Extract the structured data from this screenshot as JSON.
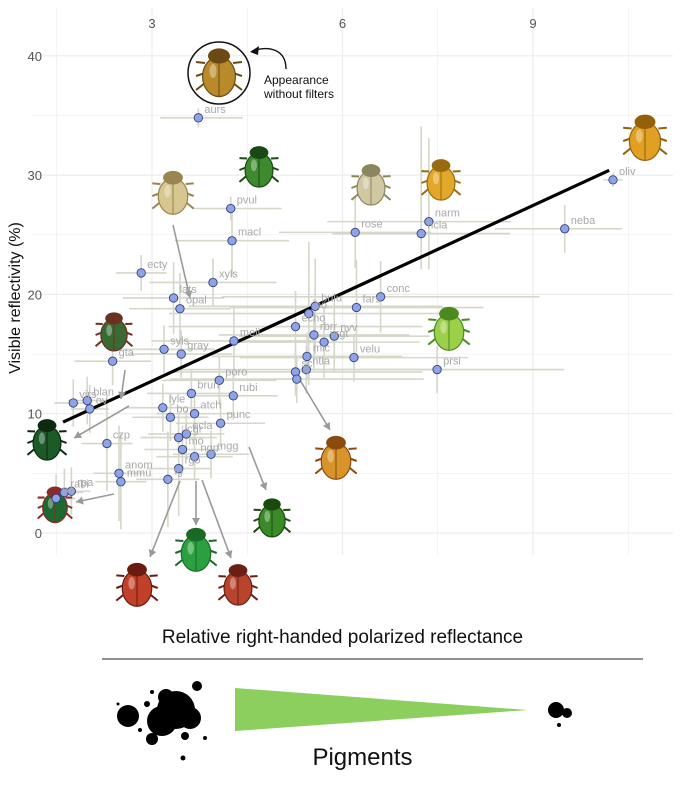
{
  "chart_data": {
    "type": "scatter",
    "xlabel": "Relative right-handed polarized reflectance",
    "ylabel": "Visible reflectivity (%)",
    "xlim": [
      0.2,
      11.1
    ],
    "ylim": [
      -1,
      42
    ],
    "x_ticks": [
      3,
      6,
      9
    ],
    "y_ticks": [
      0,
      10,
      20,
      30,
      40
    ],
    "x_axis_position": "top",
    "grid": true,
    "trend_line": {
      "x": [
        1.6,
        10.2
      ],
      "y": [
        9.3,
        30.4
      ]
    },
    "points": [
      {
        "label": "aurs",
        "x": 3.73,
        "y": 34.8,
        "xerr": [
          0.6,
          0.7
        ],
        "yerr": [
          0.8,
          0.8
        ]
      },
      {
        "label": "oliv",
        "x": 10.26,
        "y": 29.6,
        "xerr": [
          0.15,
          0.15
        ],
        "yerr": [
          0.6,
          0.6
        ]
      },
      {
        "label": "pvul",
        "x": 4.24,
        "y": 27.2,
        "xerr": [
          0.6,
          0.8
        ],
        "yerr": [
          1.0,
          1.0
        ]
      },
      {
        "label": "narm",
        "x": 7.36,
        "y": 26.1,
        "xerr": [
          1.6,
          1.3
        ],
        "yerr": [
          4,
          7
        ]
      },
      {
        "label": "ncla",
        "x": 7.24,
        "y": 25.1,
        "xerr": [
          1.4,
          1.4
        ],
        "yerr": [
          3,
          9
        ]
      },
      {
        "label": "neba",
        "x": 9.5,
        "y": 25.5,
        "xerr": [
          1.1,
          0.9
        ],
        "yerr": [
          2,
          2
        ]
      },
      {
        "label": "rose",
        "x": 6.2,
        "y": 25.2,
        "xerr": [
          1.2,
          1.2
        ],
        "yerr": [
          3,
          3
        ]
      },
      {
        "label": "macl",
        "x": 4.26,
        "y": 24.5,
        "xerr": [
          0.9,
          0.9
        ],
        "yerr": [
          3,
          3
        ]
      },
      {
        "label": "xyls",
        "x": 3.96,
        "y": 21.0,
        "xerr": [
          1.0,
          1.0
        ],
        "yerr": [
          2,
          2
        ]
      },
      {
        "label": "ecty",
        "x": 2.83,
        "y": 21.8,
        "xerr": [
          0.4,
          0.4
        ],
        "yerr": [
          1.5,
          1.5
        ]
      },
      {
        "label": "lats",
        "x": 3.34,
        "y": 19.7,
        "xerr": [
          0.8,
          0.8
        ],
        "yerr": [
          3,
          3
        ]
      },
      {
        "label": "opal",
        "x": 3.44,
        "y": 18.8,
        "xerr": [
          0.8,
          0.8
        ],
        "yerr": [
          3,
          3
        ]
      },
      {
        "label": "conc",
        "x": 6.6,
        "y": 19.8,
        "xerr": [
          2.5,
          2.5
        ],
        "yerr": [
          3,
          3
        ]
      },
      {
        "label": "bulu",
        "x": 5.57,
        "y": 19.0,
        "xerr": [
          2.0,
          2.0
        ],
        "yerr": [
          4,
          4
        ]
      },
      {
        "label": "bo",
        "x": 5.47,
        "y": 18.4,
        "xerr": [
          2.2,
          2.2
        ],
        "yerr": [
          6,
          6
        ]
      },
      {
        "label": "fars",
        "x": 6.22,
        "y": 18.9,
        "xerr": [
          2.0,
          2.0
        ],
        "yerr": [
          4,
          4
        ]
      },
      {
        "label": "echo",
        "x": 5.26,
        "y": 17.3,
        "xerr": [
          2.0,
          2.0
        ],
        "yerr": [
          3,
          3
        ]
      },
      {
        "label": "meli",
        "x": 4.29,
        "y": 16.1,
        "xerr": [
          1.3,
          1.3
        ],
        "yerr": [
          3,
          3
        ]
      },
      {
        "label": "rbrr",
        "x": 5.55,
        "y": 16.6,
        "xerr": [
          1.5,
          1.5
        ],
        "yerr": [
          3,
          3
        ]
      },
      {
        "label": "vrgt",
        "x": 5.71,
        "y": 16.0,
        "xerr": [
          1.5,
          1.5
        ],
        "yerr": [
          3,
          3
        ]
      },
      {
        "label": "nvv",
        "x": 5.87,
        "y": 16.5,
        "xerr": [
          1.5,
          1.5
        ],
        "yerr": [
          3,
          3
        ]
      },
      {
        "label": "syls",
        "x": 3.19,
        "y": 15.4,
        "xerr": [
          0.8,
          0.8
        ],
        "yerr": [
          2,
          2
        ]
      },
      {
        "label": "gray",
        "x": 3.46,
        "y": 15.0,
        "xerr": [
          0.8,
          0.8
        ],
        "yerr": [
          2,
          2
        ]
      },
      {
        "label": "velu",
        "x": 6.18,
        "y": 14.7,
        "xerr": [
          1.8,
          1.8
        ],
        "yerr": [
          2,
          2
        ]
      },
      {
        "label": "mic",
        "x": 5.44,
        "y": 14.8,
        "xerr": [
          1.5,
          1.5
        ],
        "yerr": [
          2,
          2
        ]
      },
      {
        "label": "gta",
        "x": 2.38,
        "y": 14.4,
        "xerr": [
          0.6,
          0.6
        ],
        "yerr": [
          2,
          2
        ]
      },
      {
        "label": "prsi",
        "x": 7.49,
        "y": 13.7,
        "xerr": [
          2.0,
          2.0
        ],
        "yerr": [
          2,
          2
        ]
      },
      {
        "label": "ntla",
        "x": 5.43,
        "y": 13.7,
        "xerr": [
          2.0,
          2.0
        ],
        "yerr": [
          2,
          2
        ]
      },
      {
        "label": "sc",
        "x": 5.26,
        "y": 13.5,
        "xerr": [
          2.0,
          2.0
        ],
        "yerr": [
          2,
          2
        ]
      },
      {
        "label": "rr",
        "x": 5.28,
        "y": 12.9,
        "xerr": [
          2.0,
          2.0
        ],
        "yerr": [
          2,
          2
        ]
      },
      {
        "label": "poro",
        "x": 4.06,
        "y": 12.8,
        "xerr": [
          0.9,
          0.9
        ],
        "yerr": [
          2,
          2
        ]
      },
      {
        "label": "brun",
        "x": 3.62,
        "y": 11.7,
        "xerr": [
          0.7,
          0.7
        ],
        "yerr": [
          2,
          2
        ]
      },
      {
        "label": "rubi",
        "x": 4.28,
        "y": 11.5,
        "xerr": [
          0.7,
          0.7
        ],
        "yerr": [
          2,
          2
        ]
      },
      {
        "label": "blan",
        "x": 1.98,
        "y": 11.1,
        "xerr": [
          0.3,
          0.3
        ],
        "yerr": [
          2,
          2
        ]
      },
      {
        "label": "virs",
        "x": 1.76,
        "y": 10.9,
        "xerr": [
          0.3,
          0.3
        ],
        "yerr": [
          2,
          2
        ]
      },
      {
        "label": "lyle",
        "x": 3.17,
        "y": 10.5,
        "xerr": [
          0.6,
          0.6
        ],
        "yerr": [
          2,
          2
        ]
      },
      {
        "label": "atch",
        "x": 3.67,
        "y": 10.0,
        "xerr": [
          0.6,
          0.6
        ],
        "yerr": [
          2,
          2
        ]
      },
      {
        "label": "ov",
        "x": 2.02,
        "y": 10.4,
        "xerr": [
          0.3,
          0.3
        ],
        "yerr": [
          2,
          2
        ]
      },
      {
        "label": "punc",
        "x": 4.08,
        "y": 9.2,
        "xerr": [
          0.7,
          0.7
        ],
        "yerr": [
          2,
          2
        ]
      },
      {
        "label": "bo",
        "x": 3.29,
        "y": 9.7,
        "xerr": [
          0.6,
          0.6
        ],
        "yerr": [
          2,
          2
        ]
      },
      {
        "label": "ecla",
        "x": 3.54,
        "y": 8.3,
        "xerr": [
          0.6,
          0.6
        ],
        "yerr": [
          2,
          2
        ]
      },
      {
        "label": "czp",
        "x": 2.29,
        "y": 7.5,
        "xerr": [
          0.4,
          0.4
        ],
        "yerr": [
          4,
          4
        ]
      },
      {
        "label": "lcgr",
        "x": 3.42,
        "y": 8.0,
        "xerr": [
          0.6,
          0.6
        ],
        "yerr": [
          2,
          2
        ]
      },
      {
        "label": "mgg",
        "x": 3.93,
        "y": 6.6,
        "xerr": [
          0.6,
          0.6
        ],
        "yerr": [
          2,
          2
        ]
      },
      {
        "label": "mo",
        "x": 3.48,
        "y": 7.0,
        "xerr": [
          0.6,
          0.6
        ],
        "yerr": [
          2,
          2
        ]
      },
      {
        "label": "ngp",
        "x": 3.67,
        "y": 6.4,
        "xerr": [
          0.6,
          0.6
        ],
        "yerr": [
          2,
          2
        ]
      },
      {
        "label": "anom",
        "x": 2.48,
        "y": 5.0,
        "xerr": [
          0.4,
          0.4
        ],
        "yerr": [
          4,
          4
        ]
      },
      {
        "label": "mmu",
        "x": 2.51,
        "y": 4.3,
        "xerr": [
          0.4,
          0.4
        ],
        "yerr": [
          4,
          4
        ]
      },
      {
        "label": "rgo",
        "x": 3.42,
        "y": 5.4,
        "xerr": [
          0.5,
          0.5
        ],
        "yerr": [
          4,
          4
        ]
      },
      {
        "label": "tg",
        "x": 3.25,
        "y": 4.5,
        "xerr": [
          0.5,
          0.5
        ],
        "yerr": [
          4,
          4
        ]
      },
      {
        "label": "rabi",
        "x": 1.62,
        "y": 3.4,
        "xerr": [
          0.3,
          0.3
        ],
        "yerr": [
          2,
          2
        ]
      },
      {
        "label": "rpa",
        "x": 1.73,
        "y": 3.5,
        "xerr": [
          0.3,
          0.3
        ],
        "yerr": [
          2,
          2
        ]
      },
      {
        "label": "pa",
        "x": 1.49,
        "y": 2.9,
        "xerr": [
          0.3,
          0.3
        ],
        "yerr": [
          2,
          2
        ]
      }
    ],
    "annotations": [
      "Appearance",
      "without filters"
    ]
  },
  "footer": {
    "x_title": "Relative right-handed polarized reflectance",
    "pigments_label": "Pigments"
  },
  "colors": {
    "point_fill": "#8fa4e8",
    "point_stroke": "#33407a",
    "error_bar": "#d5d7c8",
    "trend_line": "#000000",
    "triangle": "#8ccf5e",
    "grid": "#ececec"
  }
}
